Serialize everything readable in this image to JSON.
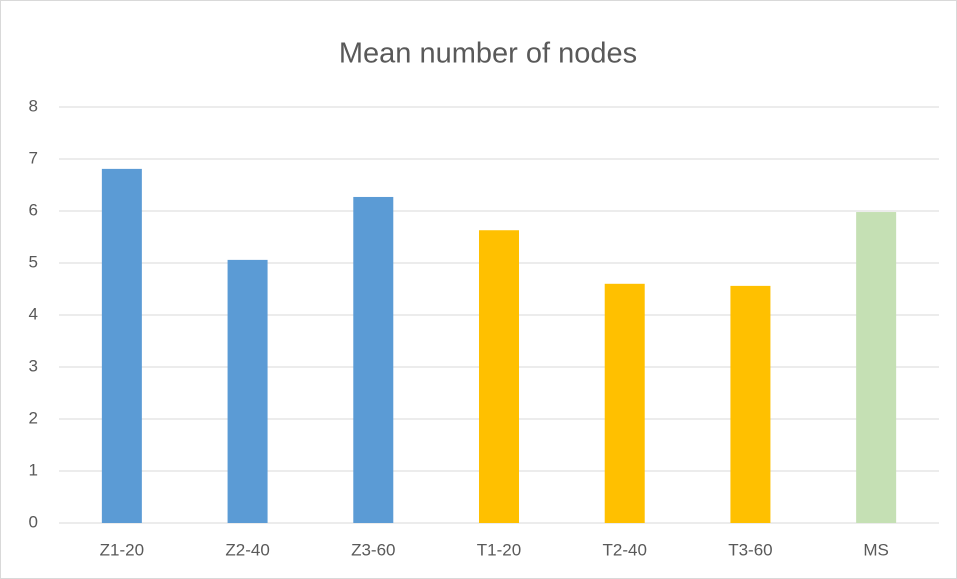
{
  "chart_data": {
    "type": "bar",
    "title": "Mean number of nodes",
    "categories": [
      "Z1-20",
      "Z2-40",
      "Z3-60",
      "T1-20",
      "T2-40",
      "T3-60",
      "MS"
    ],
    "values": [
      6.81,
      5.06,
      6.27,
      5.63,
      4.6,
      4.56,
      5.98
    ],
    "colors": [
      "#5b9bd5",
      "#5b9bd5",
      "#5b9bd5",
      "#ffc000",
      "#ffc000",
      "#ffc000",
      "#c5e0b4"
    ],
    "ylim": [
      0,
      8
    ],
    "yticks": [
      0,
      1,
      2,
      3,
      4,
      5,
      6,
      7,
      8
    ],
    "grid": true
  }
}
